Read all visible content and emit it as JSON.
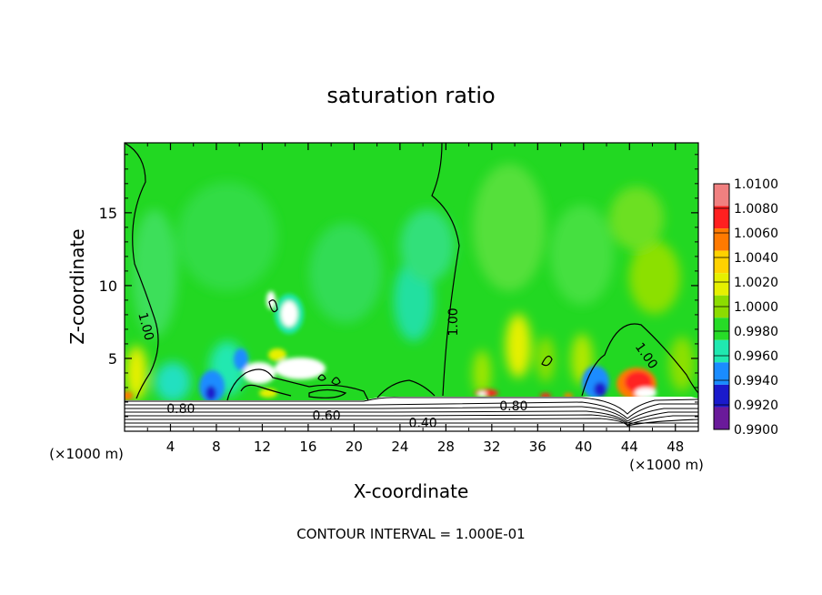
{
  "chart_data": {
    "type": "heatmap",
    "title": "saturation ratio",
    "xlabel": "X-coordinate",
    "ylabel": "Z-coordinate",
    "x_unit_left": "(×1000 m)",
    "x_unit_right": "(×1000 m)",
    "footer": "CONTOUR INTERVAL = 1.000E-01",
    "xlim": [
      0,
      50
    ],
    "ylim": [
      0,
      19.8
    ],
    "x_ticks": [
      4,
      8,
      12,
      16,
      20,
      24,
      28,
      32,
      36,
      40,
      44,
      48
    ],
    "y_ticks": [
      5,
      10,
      15
    ],
    "colorbar": {
      "levels": [
        "1.0100",
        "1.0080",
        "1.0060",
        "1.0040",
        "1.0020",
        "1.0000",
        "0.9980",
        "0.9960",
        "0.9940",
        "0.9920",
        "0.9900"
      ],
      "colors": [
        "#f08080",
        "#ff2020",
        "#ff7a00",
        "#ffd200",
        "#e6f000",
        "#8cdc00",
        "#27dc27",
        "#20e8b0",
        "#1a8cff",
        "#1a1acc",
        "#6a1a9a"
      ]
    },
    "field_colors": {
      "background": "#22d822",
      "light_green": "#5ee65e",
      "cyan": "#20e8b0",
      "blue": "#1a8cff",
      "yellow": "#e6f000",
      "red": "#ff2020",
      "white": "#ffffff"
    },
    "contour_labels": [
      {
        "text": "1.00",
        "x": 1.9,
        "z": 7.2,
        "angle": 75
      },
      {
        "text": "1.00",
        "x": 28.6,
        "z": 7.5,
        "angle": -90
      },
      {
        "text": "1.00",
        "x": 45.5,
        "z": 5.2,
        "angle": 55
      },
      {
        "text": "0.80",
        "x": 4.9,
        "z": 1.55,
        "angle": 0
      },
      {
        "text": "0.80",
        "x": 33.9,
        "z": 1.75,
        "angle": 0
      },
      {
        "text": "0.60",
        "x": 17.6,
        "z": 1.1,
        "angle": 0
      },
      {
        "text": "0.40",
        "x": 26.0,
        "z": 0.6,
        "angle": 0
      }
    ]
  }
}
